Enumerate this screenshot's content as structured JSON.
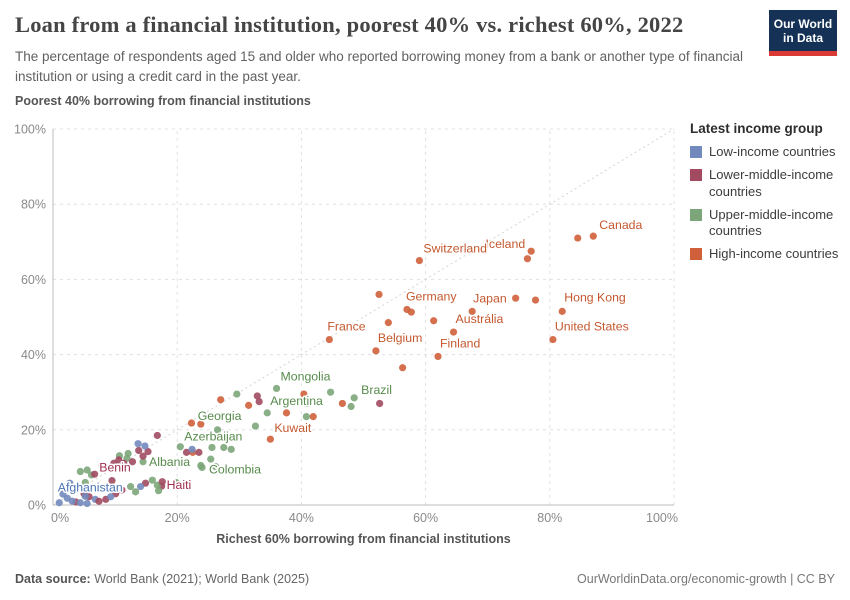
{
  "header": {
    "title": "Loan from a financial institution, poorest 40% vs. richest 60%, 2022",
    "subtitle": "The percentage of respondents aged 15 and older who reported borrowing money from a bank or another type of financial institution or using a credit card in the past year.",
    "logo_line1": "Our World",
    "logo_line2": "in Data"
  },
  "legend": {
    "title": "Latest income group"
  },
  "footer": {
    "source_label": "Data source:",
    "source_value": " World Bank (2021); World Bank (2025)",
    "credit": "OurWorldinData.org/economic-growth | CC BY"
  },
  "chart_data": {
    "type": "scatter",
    "title": "Poorest 40% borrowing from financial institutions",
    "xlabel": "Richest 60% borrowing from financial institutions",
    "ylabel": "Poorest 40% borrowing from financial institutions",
    "xlim": [
      0,
      100
    ],
    "ylim": [
      0,
      100
    ],
    "x_ticks": [
      0,
      20,
      40,
      60,
      80,
      100
    ],
    "y_ticks": [
      0,
      20,
      40,
      60,
      80,
      100
    ],
    "tick_suffix": "%",
    "grid": true,
    "identity_line": true,
    "legend_position": "right",
    "groups": [
      {
        "key": "low-income",
        "label": "Low-income countries",
        "color": "#7289bd",
        "label_color": "#4b76b5"
      },
      {
        "key": "lower-middle-income",
        "label": "Lower-middle-income countries",
        "color": "#a14a60",
        "label_color": "#9e2f50"
      },
      {
        "key": "upper-middle-income",
        "label": "Upper-middle-income countries",
        "color": "#7ca67a",
        "label_color": "#578b4c"
      },
      {
        "key": "high-income",
        "label": "High-income countries",
        "color": "#d0603c",
        "label_color": "#c4582f"
      }
    ],
    "points": [
      [
        87,
        71.5,
        3,
        "Canada",
        "s",
        6,
        -7
      ],
      [
        84.5,
        71,
        3
      ],
      [
        77,
        67.5,
        3,
        "Iceland",
        "e",
        -6,
        -3
      ],
      [
        76.4,
        65.5,
        3
      ],
      [
        59,
        65,
        3,
        "Switzerland",
        "s",
        4,
        -8
      ],
      [
        74.5,
        55,
        3
      ],
      [
        77.7,
        54.5,
        3
      ],
      [
        82,
        51.5,
        3,
        "Hong Kong",
        "s",
        2,
        -10
      ],
      [
        80.5,
        44,
        3,
        "United States",
        "s",
        2,
        -9
      ],
      [
        67.5,
        51.5,
        3,
        "Japan",
        "s",
        1,
        -9
      ],
      [
        57,
        52,
        3,
        "Germany",
        "s",
        -1,
        -9
      ],
      [
        57.7,
        51.3,
        3
      ],
      [
        64.5,
        46,
        3,
        "Austrália",
        "s",
        2,
        -9
      ],
      [
        52.5,
        56,
        3
      ],
      [
        54,
        48.5,
        3
      ],
      [
        61.3,
        49,
        3
      ],
      [
        44.5,
        44,
        3,
        "France",
        "s",
        -2,
        -9
      ],
      [
        52,
        41,
        3,
        "Belgium",
        "s",
        2,
        -9
      ],
      [
        62,
        39.5,
        3,
        "Finland",
        "s",
        2,
        -9
      ],
      [
        56.3,
        36.5,
        3
      ],
      [
        36,
        31,
        2,
        "Mongolia",
        "s",
        4,
        -8
      ],
      [
        48.5,
        28.5,
        2,
        "Brazil",
        "s",
        7,
        -4
      ],
      [
        34.5,
        24.5,
        2,
        "Argentina",
        "s",
        3,
        -8
      ],
      [
        35,
        17.5,
        3,
        "Kuwait",
        "s",
        4,
        -7
      ],
      [
        26.5,
        20,
        2,
        "Georgia",
        "m",
        2,
        -10
      ],
      [
        20.5,
        15.5,
        2,
        "Azerbaijan",
        "s",
        4,
        -6
      ],
      [
        24,
        10,
        2,
        "Colombia",
        "s",
        7,
        6
      ],
      [
        14.5,
        11.5,
        2,
        "Albania",
        "s",
        6,
        4
      ],
      [
        9.5,
        6.5,
        1,
        "Benin",
        "m",
        3,
        -9
      ],
      [
        17.5,
        5,
        1,
        "Haiti",
        "s",
        5,
        3
      ],
      [
        6.8,
        1.5,
        0,
        "Afghanistan",
        "m",
        -5,
        -8
      ],
      [
        27,
        28,
        3
      ],
      [
        31.5,
        26.5,
        3
      ],
      [
        40.4,
        29.5,
        3
      ],
      [
        46.6,
        27,
        3
      ],
      [
        37.6,
        24.5,
        3
      ],
      [
        41.9,
        23.5,
        3
      ],
      [
        23.8,
        21.5,
        3
      ],
      [
        22.3,
        21.8,
        3
      ],
      [
        22.5,
        14,
        3
      ],
      [
        29.6,
        29.5,
        2
      ],
      [
        40.9,
        27,
        2
      ],
      [
        44.7,
        30,
        2
      ],
      [
        40.8,
        23.5,
        2
      ],
      [
        32.6,
        21,
        2
      ],
      [
        25.6,
        15.3,
        2
      ],
      [
        27.5,
        15.3,
        2
      ],
      [
        28.7,
        14.8,
        2
      ],
      [
        25.4,
        12.2,
        2
      ],
      [
        23.8,
        10.5,
        2
      ],
      [
        26.2,
        10.2,
        2
      ],
      [
        12.1,
        13.7,
        2
      ],
      [
        5.2,
        6,
        2
      ],
      [
        6.2,
        8,
        2
      ],
      [
        16,
        6.6,
        2
      ],
      [
        16.8,
        5.3,
        2
      ],
      [
        13.3,
        3.5,
        2
      ],
      [
        12.5,
        4.9,
        2
      ],
      [
        11.9,
        12.4,
        2
      ],
      [
        5.5,
        9.3,
        2
      ],
      [
        4.4,
        8.9,
        2
      ],
      [
        19.8,
        6,
        2
      ],
      [
        17,
        3.8,
        2
      ],
      [
        48,
        26.2,
        2
      ],
      [
        10.7,
        13.1,
        2
      ],
      [
        32.9,
        29,
        1
      ],
      [
        33.2,
        27.5,
        1
      ],
      [
        52.6,
        27,
        1
      ],
      [
        21.5,
        14,
        1
      ],
      [
        23.5,
        14,
        1
      ],
      [
        16.8,
        18.5,
        1
      ],
      [
        15.3,
        14.2,
        1
      ],
      [
        13.8,
        14.5,
        1
      ],
      [
        14.5,
        13,
        1
      ],
      [
        6.7,
        8.2,
        1
      ],
      [
        5,
        3,
        1
      ],
      [
        5.8,
        2.2,
        1
      ],
      [
        7.4,
        1,
        1
      ],
      [
        8.5,
        1.5,
        1
      ],
      [
        10.1,
        3,
        1
      ],
      [
        11.1,
        4,
        1
      ],
      [
        14.9,
        5.8,
        1
      ],
      [
        17.6,
        6.2,
        1
      ],
      [
        7.9,
        10.5,
        1
      ],
      [
        9,
        9.8,
        1
      ],
      [
        9.8,
        11.1,
        1
      ],
      [
        10.6,
        12,
        1
      ],
      [
        11.4,
        11.1,
        1
      ],
      [
        12.8,
        11.5,
        1
      ],
      [
        3.7,
        0.8,
        1
      ],
      [
        22.4,
        14.8,
        0
      ],
      [
        14.8,
        15.7,
        0
      ],
      [
        13.7,
        16.3,
        0
      ],
      [
        2.3,
        1.8,
        0
      ],
      [
        3.1,
        1,
        0
      ],
      [
        1.6,
        2.9,
        0
      ],
      [
        9.3,
        2.2,
        0
      ],
      [
        14.1,
        4.9,
        0
      ],
      [
        1,
        0.6,
        0
      ],
      [
        4.4,
        0.6,
        0
      ],
      [
        5.5,
        0.4,
        0
      ],
      [
        1.7,
        4.8,
        0
      ],
      [
        2.7,
        5.8,
        0
      ],
      [
        5.2,
        2.3,
        0
      ]
    ]
  }
}
